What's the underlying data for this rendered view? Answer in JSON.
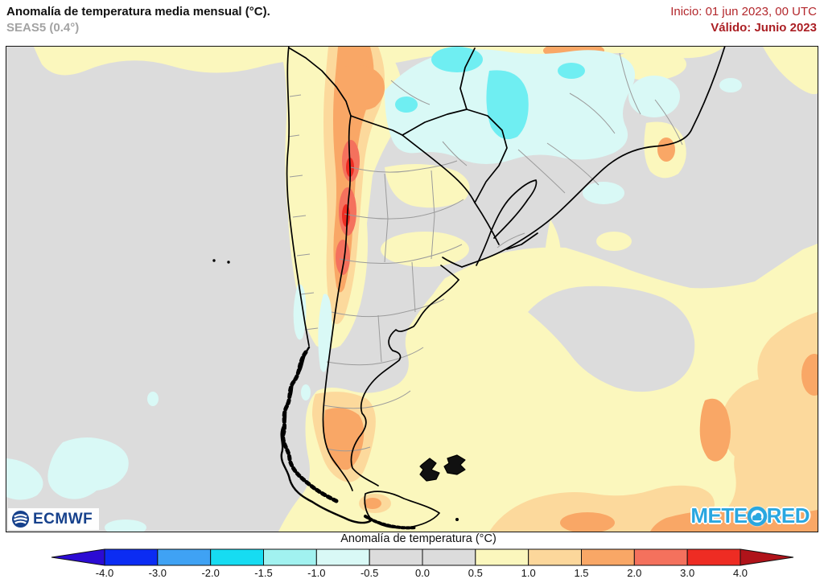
{
  "header": {
    "title": "Anomalía de temperatura media mensual (°C).",
    "subtitle": "SEAS5 (0.4°)",
    "init_label": "Inicio: 01 jun 2023, 00 UTC",
    "valid_label": "Válido: Junio 2023",
    "accent_color": "#ab1f24"
  },
  "logos": {
    "ecmwf": "ECMWF",
    "meteored_prefix": "METE",
    "meteored_suffix": "RED",
    "meteored_full": "METEORED",
    "meteored_color": "#2aa7e0",
    "ecmwf_color": "#16418c"
  },
  "colorbar": {
    "label": "Anomalía de temperatura (°C)",
    "ticks": [
      "-4.0",
      "-3.0",
      "-2.0",
      "-1.5",
      "-1.0",
      "-0.5",
      "0.0",
      "0.5",
      "1.0",
      "1.5",
      "2.0",
      "3.0",
      "4.0"
    ],
    "cell_colors": [
      "#0b2cf3",
      "#3fa2f4",
      "#16dcf2",
      "#a1f2f0",
      "#d9f9f6",
      "#dcdcdc",
      "#dcdcdc",
      "#fbf7bd",
      "#fcd79b",
      "#f9a766",
      "#f4715d",
      "#ee2c23"
    ],
    "arrow_left_color": "#2b0bd3",
    "arrow_right_color": "#b0131a"
  },
  "chart_data": {
    "type": "heatmap",
    "title": "Anomalía de temperatura media mensual (°C)",
    "model": "SEAS5 (0.4°)",
    "init": "01 jun 2023, 00 UTC",
    "valid": "Junio 2023",
    "region": "Southern South America (Chile, Argentina, Paraguay, Uruguay, S Brazil, Bolivia) with SE Pacific and SW Atlantic",
    "colorbar_label": "Anomalía de temperatura (°C)",
    "levels_c": [
      -4.0,
      -3.0,
      -2.0,
      -1.5,
      -1.0,
      -0.5,
      0.0,
      0.5,
      1.0,
      1.5,
      2.0,
      3.0,
      4.0
    ],
    "legend_position": "bottom",
    "features": [
      {
        "area": "Andes cordillera along central Chile–Argentina border",
        "anomaly_c": "+1.5 to +4.0"
      },
      {
        "area": "NW Argentina and SW Bolivia highlands",
        "anomaly_c": "+1.0 to +2.0"
      },
      {
        "area": "Paraguay, N Argentina (Chaco) and SW Brazil",
        "anomaly_c": "-1.5 to -0.5"
      },
      {
        "area": "Central Argentina (Pampas) and Uruguay",
        "anomaly_c": "-0.5 to +1.0"
      },
      {
        "area": "S Chile Andes around 40–48°S",
        "anomaly_c": "-1.0 to -0.5"
      },
      {
        "area": "S Patagonia (Santa Cruz, Tierra del Fuego)",
        "anomaly_c": "+0.5 to +2.0"
      },
      {
        "area": "SW Atlantic Ocean",
        "anomaly_c": "+0.5 to +2.0"
      },
      {
        "area": "SE Pacific Ocean",
        "anomaly_c": "-1.0 to +0.5 (mostly near 0)"
      },
      {
        "area": "SE Brazil coast spot and top-of-map tropical band",
        "anomaly_c": "+0.5 to +2.0"
      }
    ]
  }
}
